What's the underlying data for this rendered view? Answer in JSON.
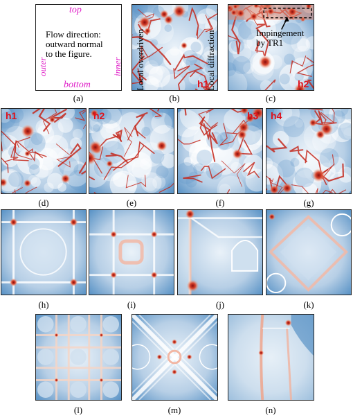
{
  "panel_a": {
    "labels": {
      "top": "top",
      "bottom": "bottom",
      "outer": "outer",
      "inner": "inner"
    },
    "text_lines": [
      "Flow direction:",
      "outward normal",
      "to the figure."
    ]
  },
  "panel_b": {
    "left_label": "Local overdriven",
    "right_label": "Local diffraction",
    "tag": "h1"
  },
  "panel_c": {
    "annotation_lines": [
      "Impingement",
      "by TR1"
    ],
    "tag": "h2"
  },
  "row2_tags": [
    "h1",
    "h2",
    "h3",
    "h4"
  ],
  "captions": [
    "(a)",
    "(b)",
    "(c)",
    "(d)",
    "(e)",
    "(f)",
    "(g)",
    "(h)",
    "(i)",
    "(j)",
    "(k)",
    "(l)",
    "(m)",
    "(n)"
  ],
  "colors": {
    "magenta": "#e020c8",
    "tag_red": "#e0101a",
    "field_blue": "#5a93c6",
    "field_light": "#dbe8f3",
    "hot_red": "#b81a1a"
  }
}
